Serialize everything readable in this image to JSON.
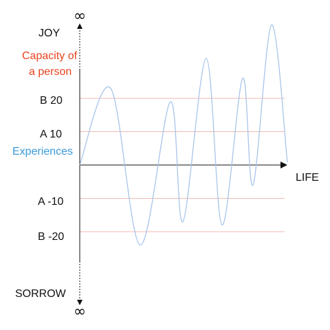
{
  "labels": {
    "top_infinity": "∞",
    "bottom_infinity": "∞",
    "joy": "JOY",
    "capacity_line1": "Capacity of",
    "capacity_line2": "a person",
    "b_pos": "B  20",
    "a_pos": "A  10",
    "experiences": "Experiences",
    "life": "LIFE",
    "a_neg": "A  -10",
    "b_neg": "B  -20",
    "sorrow": "SORROW"
  },
  "levels": [
    20,
    10,
    -10,
    -20
  ],
  "wave": {
    "peaks": [
      23,
      19,
      32,
      26,
      42
    ],
    "troughs": [
      -24,
      -17,
      -18,
      -6
    ]
  },
  "colors": {
    "axis": "#111111",
    "wave": "#a8c4ea",
    "level_line": "#f3b8b0",
    "capacity_text": "#e8421f",
    "experiences_text": "#3a9ad9"
  }
}
